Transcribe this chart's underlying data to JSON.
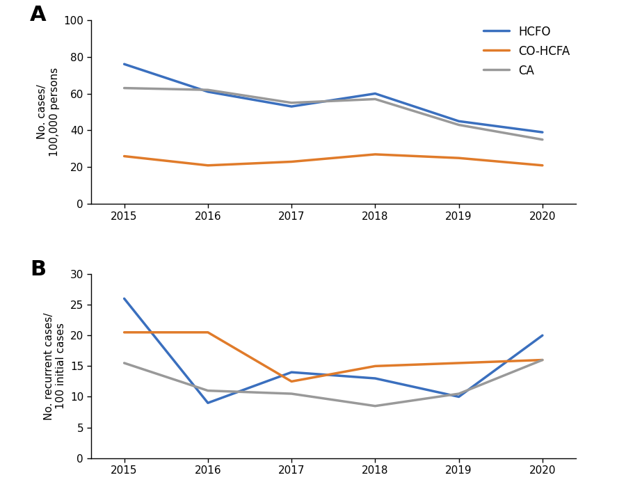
{
  "years": [
    2015,
    2016,
    2017,
    2018,
    2019,
    2020
  ],
  "panel_A": {
    "HCFO": [
      76,
      61,
      53,
      60,
      45,
      39
    ],
    "CO_HCFA": [
      26,
      21,
      23,
      27,
      25,
      21
    ],
    "CA": [
      63,
      62,
      55,
      57,
      43,
      35
    ]
  },
  "panel_B": {
    "HCFO": [
      26,
      9,
      14,
      13,
      10,
      20
    ],
    "CO_HCFA": [
      20.5,
      20.5,
      12.5,
      15,
      15.5,
      16
    ],
    "CA": [
      15.5,
      11,
      10.5,
      8.5,
      10.5,
      16
    ]
  },
  "colors": {
    "HCFO": "#3a6fbe",
    "CO_HCFA": "#e07b2a",
    "CA": "#999999"
  },
  "panel_A_ylabel": "No. cases/\n100,000 persons",
  "panel_B_ylabel": "No. recurrent cases/\n100 initial cases",
  "panel_A_ylim": [
    0,
    100
  ],
  "panel_B_ylim": [
    0,
    30
  ],
  "panel_A_yticks": [
    0,
    20,
    40,
    60,
    80,
    100
  ],
  "panel_B_yticks": [
    0,
    5,
    10,
    15,
    20,
    25,
    30
  ],
  "label_A": "A",
  "label_B": "B",
  "linewidth": 2.5,
  "tick_fontsize": 11,
  "ylabel_fontsize": 11,
  "label_fontsize": 22
}
